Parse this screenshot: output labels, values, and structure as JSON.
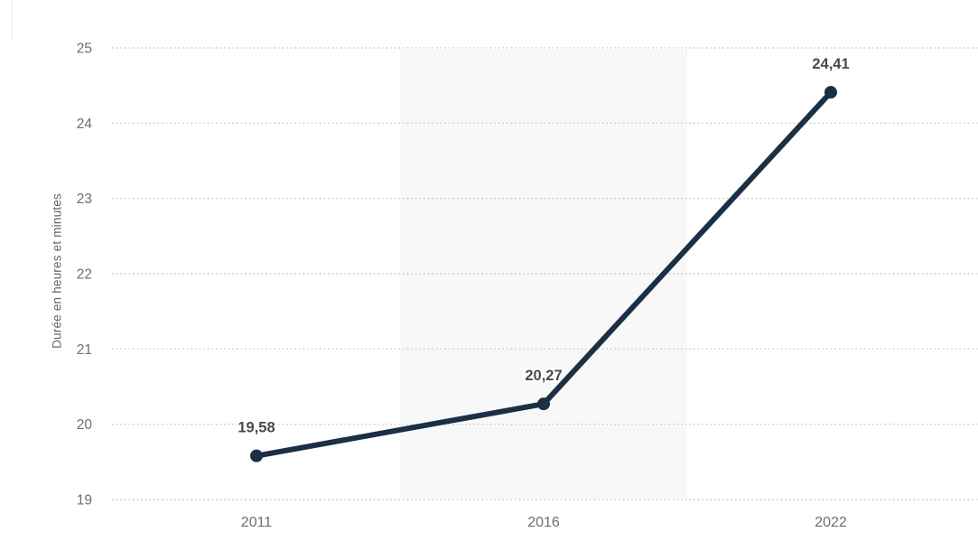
{
  "chart_data": {
    "type": "line",
    "categories": [
      "2011",
      "2016",
      "2022"
    ],
    "values": [
      19.58,
      20.27,
      24.41
    ],
    "point_labels": [
      "19,58",
      "20,27",
      "24,41"
    ],
    "series_name": "Durée",
    "title": "",
    "xlabel": "",
    "ylabel": "Durée en heures et minutes",
    "ylim": [
      19,
      25
    ],
    "yticks": [
      19,
      20,
      21,
      22,
      23,
      24,
      25
    ],
    "grid": "dotted-horizontal",
    "legend": "none",
    "highlight_band_category": "2016",
    "colors": {
      "line": "#1b2f45",
      "marker": "#1b2f45",
      "grid": "#c9c9c9",
      "band": "#f8f8f8",
      "tick_text": "#6e6e6e",
      "category_text": "#6e6e6e",
      "point_label_text": "#4a4a4a",
      "background": "#ffffff"
    }
  }
}
